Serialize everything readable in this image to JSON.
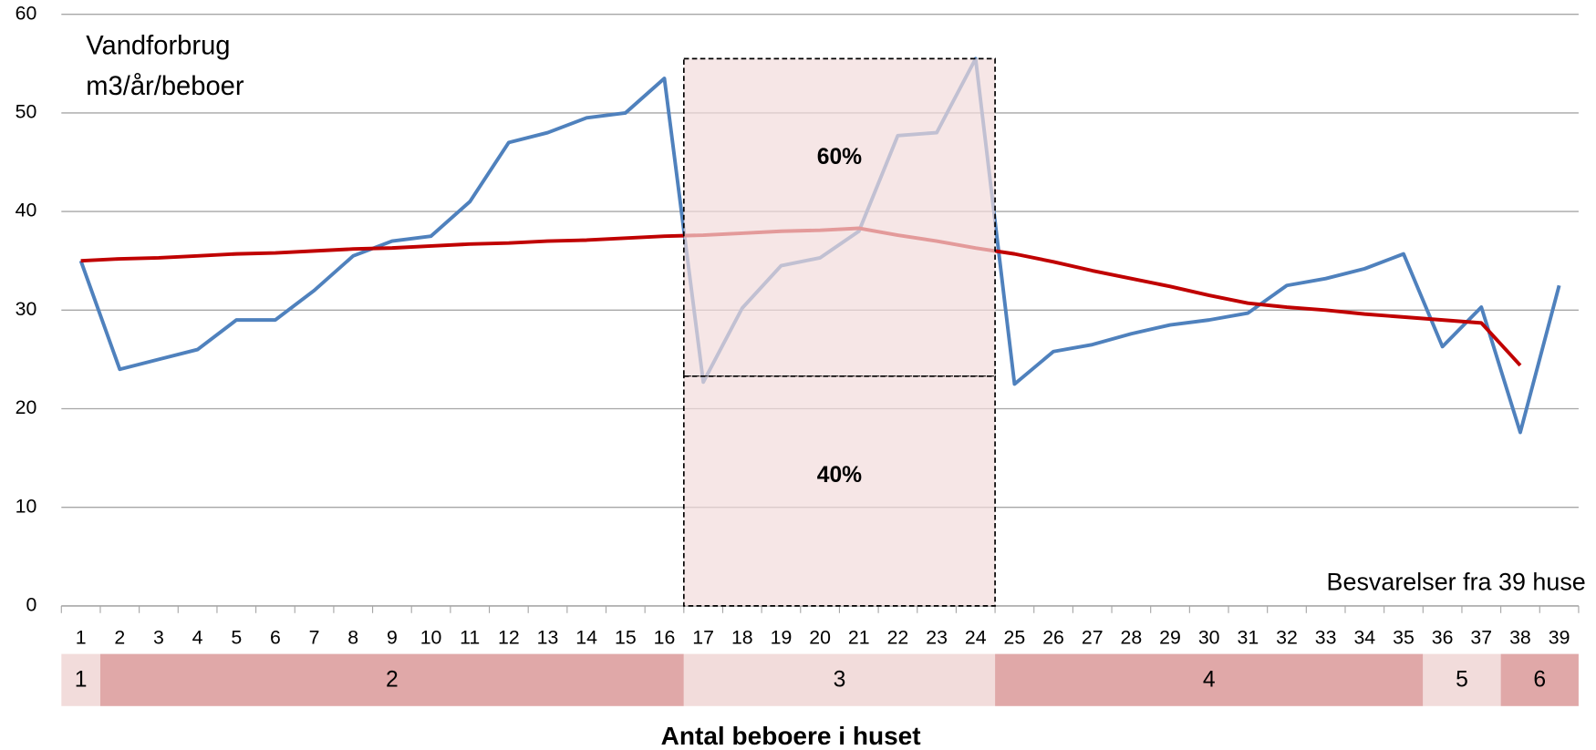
{
  "chart_data": {
    "type": "line",
    "y_label_lines": [
      "Vandforbrug",
      "m3/år/beboer"
    ],
    "x_label": "Antal beboere i huset",
    "note": "Besvarelser fra 39 huse",
    "categories": [
      "1",
      "2",
      "3",
      "4",
      "5",
      "6",
      "7",
      "8",
      "9",
      "10",
      "11",
      "12",
      "13",
      "14",
      "15",
      "16",
      "17",
      "18",
      "19",
      "20",
      "21",
      "22",
      "23",
      "24",
      "25",
      "26",
      "27",
      "28",
      "29",
      "30",
      "31",
      "32",
      "33",
      "34",
      "35",
      "36",
      "37",
      "38",
      "39"
    ],
    "series": [
      {
        "color": "#4f81bd",
        "values": [
          35,
          24,
          25,
          26,
          29,
          29,
          32,
          35.5,
          37,
          37.5,
          41,
          47,
          48,
          49.5,
          50,
          53.5,
          22.7,
          30.2,
          34.5,
          35.3,
          38,
          47.7,
          48,
          55.5,
          22.5,
          25.8,
          26.5,
          27.6,
          28.5,
          29,
          29.7,
          32.5,
          33.2,
          34.2,
          35.7,
          26.3,
          30.3,
          17.6,
          32.5
        ]
      },
      {
        "color": "#c00000",
        "values": [
          35.0,
          35.2,
          35.3,
          35.5,
          35.7,
          35.8,
          36.0,
          36.2,
          36.3,
          36.5,
          36.7,
          36.8,
          37.0,
          37.1,
          37.3,
          37.5,
          37.6,
          37.8,
          38.0,
          38.1,
          38.3,
          37.6,
          37.0,
          36.3,
          35.7,
          34.9,
          34.0,
          33.2,
          32.4,
          31.5,
          30.7,
          30.3,
          30.0,
          29.6,
          29.3,
          29.0,
          28.7,
          24.4,
          null
        ]
      }
    ],
    "ylim": [
      0,
      60
    ],
    "yticks": [
      0,
      10,
      20,
      30,
      40,
      50,
      60
    ],
    "grid": true,
    "highlight": {
      "from_category": 17,
      "to_category": 24,
      "split": 23.3,
      "top": 55.5,
      "upper_label": "60%",
      "lower_label": "40%"
    },
    "groups": [
      {
        "label": "1",
        "houses": 1
      },
      {
        "label": "2",
        "houses": 15
      },
      {
        "label": "3",
        "houses": 8
      },
      {
        "label": "4",
        "houses": 11
      },
      {
        "label": "5",
        "houses": 2
      },
      {
        "label": "6",
        "houses": 2
      }
    ]
  }
}
